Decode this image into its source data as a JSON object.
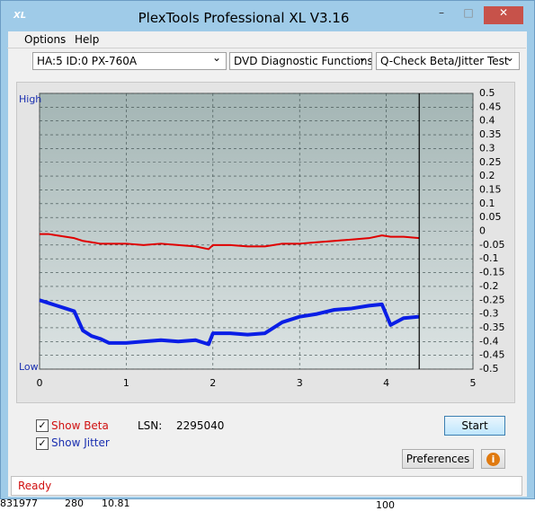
{
  "window": {
    "title": "PlexTools Professional XL V3.16",
    "app_icon": "XL"
  },
  "menu": [
    "Options",
    "Help"
  ],
  "toolbar": {
    "drive": "HA:5 ID:0  PX-760A",
    "function": "DVD Diagnostic Functions",
    "test": "Q-Check Beta/Jitter Test"
  },
  "controls": {
    "show_beta": "Show Beta",
    "show_jitter": "Show Jitter",
    "lsn_label": "LSN:",
    "lsn_value": "2295040",
    "start": "Start",
    "preferences": "Preferences"
  },
  "status": "Ready",
  "background_text": [
    "831977",
    "280",
    "10.81",
    "100"
  ],
  "chart_data": {
    "type": "line",
    "high_label": "High",
    "low_label": "Low",
    "x": [
      0,
      0.1,
      0.2,
      0.3,
      0.4,
      0.5,
      0.6,
      0.7,
      0.8,
      1.0,
      1.2,
      1.4,
      1.6,
      1.8,
      1.95,
      2.0,
      2.2,
      2.4,
      2.6,
      2.7,
      2.8,
      3.0,
      3.2,
      3.4,
      3.6,
      3.8,
      3.95,
      4.05,
      4.2,
      4.38
    ],
    "series": [
      {
        "name": "Beta",
        "color": "#e00000",
        "values": [
          -0.01,
          -0.01,
          -0.015,
          -0.02,
          -0.025,
          -0.035,
          -0.04,
          -0.045,
          -0.045,
          -0.045,
          -0.05,
          -0.045,
          -0.05,
          -0.055,
          -0.065,
          -0.05,
          -0.05,
          -0.055,
          -0.055,
          -0.05,
          -0.045,
          -0.045,
          -0.04,
          -0.035,
          -0.03,
          -0.025,
          -0.015,
          -0.02,
          -0.02,
          -0.025
        ]
      },
      {
        "name": "Jitter",
        "color": "#0a1ee6",
        "values": [
          -0.25,
          -0.26,
          -0.27,
          -0.28,
          -0.29,
          -0.36,
          -0.38,
          -0.39,
          -0.405,
          -0.405,
          -0.4,
          -0.395,
          -0.4,
          -0.395,
          -0.41,
          -0.37,
          -0.37,
          -0.375,
          -0.37,
          -0.35,
          -0.33,
          -0.31,
          -0.3,
          -0.285,
          -0.28,
          -0.27,
          -0.265,
          -0.34,
          -0.315,
          -0.31
        ]
      }
    ],
    "end_marker": 4.38,
    "xlim": [
      0,
      5
    ],
    "xticks": [
      0,
      1,
      2,
      3,
      4,
      5
    ],
    "ylim": [
      -0.5,
      0.5
    ],
    "yticks": [
      0.5,
      0.45,
      0.4,
      0.35,
      0.3,
      0.25,
      0.2,
      0.15,
      0.1,
      0.05,
      0,
      -0.05,
      -0.1,
      -0.15,
      -0.2,
      -0.25,
      -0.3,
      -0.35,
      -0.4,
      -0.45,
      -0.5
    ],
    "grid": true
  }
}
